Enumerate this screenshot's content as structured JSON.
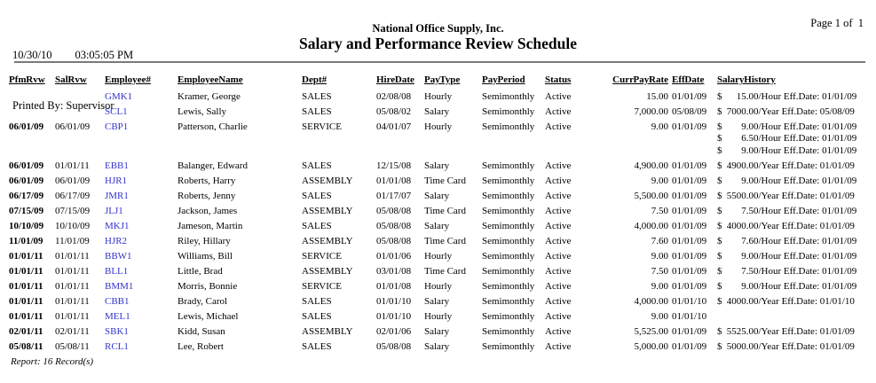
{
  "header": {
    "date": "10/30/10",
    "time": "03:05:05 PM",
    "printed_by_label": "Printed By:",
    "printed_by_value": "Supervisor",
    "company": "National Office Supply, Inc.",
    "title": "Salary and Performance Review Schedule",
    "page_info": "Page 1 of  1"
  },
  "colors": {
    "employee_link": "#3333CC",
    "rule": "#7a7a7a",
    "text": "#000000"
  },
  "table": {
    "headers": {
      "pfm": "Pfm Rvw",
      "sal": "Sal Rvw",
      "emp": "Employee#",
      "name": "Employee Name",
      "dept": "Dept#",
      "hire": "Hire Date",
      "pay_type": "Pay Type",
      "pay_period": "Pay Period",
      "status": "Status",
      "rate": "Curr Pay Rate",
      "eff": "Eff Date",
      "history": "Salary History"
    },
    "rows": [
      {
        "pfm_rvw": "",
        "sal_rvw": "",
        "employee_id": "GMK1",
        "employee_name": "Kramer, George",
        "dept": "SALES",
        "hire_date": "02/08/08",
        "pay_type": "Hourly",
        "pay_period": "Semimonthly",
        "status": "Active",
        "curr_pay_rate": "15.00",
        "eff_date": "01/01/09",
        "salary_history": [
          {
            "amt": "15.00",
            "per": "Hour",
            "date": "01/01/09"
          }
        ]
      },
      {
        "pfm_rvw": "",
        "sal_rvw": "",
        "employee_id": "SCL1",
        "employee_name": "Lewis, Sally",
        "dept": "SALES",
        "hire_date": "05/08/02",
        "pay_type": "Salary",
        "pay_period": "Semimonthly",
        "status": "Active",
        "curr_pay_rate": "7,000.00",
        "eff_date": "05/08/09",
        "salary_history": [
          {
            "amt": "7000.00",
            "per": "Year",
            "date": "05/08/09"
          }
        ]
      },
      {
        "pfm_rvw": "06/01/09",
        "sal_rvw": "06/01/09",
        "employee_id": "CBP1",
        "employee_name": "Patterson, Charlie",
        "dept": "SERVICE",
        "hire_date": "04/01/07",
        "pay_type": "Hourly",
        "pay_period": "Semimonthly",
        "status": "Active",
        "curr_pay_rate": "9.00",
        "eff_date": "01/01/09",
        "salary_history": [
          {
            "amt": "9.00",
            "per": "Hour",
            "date": "01/01/09"
          },
          {
            "amt": "6.50",
            "per": "Hour",
            "date": "01/01/09"
          },
          {
            "amt": "9.00",
            "per": "Hour",
            "date": "01/01/09"
          }
        ]
      },
      {
        "pfm_rvw": "06/01/09",
        "sal_rvw": "01/01/11",
        "employee_id": "EBB1",
        "employee_name": "Balanger, Edward",
        "dept": "SALES",
        "hire_date": "12/15/08",
        "pay_type": "Salary",
        "pay_period": "Semimonthly",
        "status": "Active",
        "curr_pay_rate": "4,900.00",
        "eff_date": "01/01/09",
        "salary_history": [
          {
            "amt": "4900.00",
            "per": "Year",
            "date": "01/01/09"
          }
        ]
      },
      {
        "pfm_rvw": "06/01/09",
        "sal_rvw": "06/01/09",
        "employee_id": "HJR1",
        "employee_name": "Roberts, Harry",
        "dept": "ASSEMBLY",
        "hire_date": "01/01/08",
        "pay_type": "Time Card",
        "pay_period": "Semimonthly",
        "status": "Active",
        "curr_pay_rate": "9.00",
        "eff_date": "01/01/09",
        "salary_history": [
          {
            "amt": "9.00",
            "per": "Hour",
            "date": "01/01/09"
          }
        ]
      },
      {
        "pfm_rvw": "06/17/09",
        "sal_rvw": "06/17/09",
        "employee_id": "JMR1",
        "employee_name": "Roberts, Jenny",
        "dept": "SALES",
        "hire_date": "01/17/07",
        "pay_type": "Salary",
        "pay_period": "Semimonthly",
        "status": "Active",
        "curr_pay_rate": "5,500.00",
        "eff_date": "01/01/09",
        "salary_history": [
          {
            "amt": "5500.00",
            "per": "Year",
            "date": "01/01/09"
          }
        ]
      },
      {
        "pfm_rvw": "07/15/09",
        "sal_rvw": "07/15/09",
        "employee_id": "JLJ1",
        "employee_name": "Jackson, James",
        "dept": "ASSEMBLY",
        "hire_date": "05/08/08",
        "pay_type": "Time Card",
        "pay_period": "Semimonthly",
        "status": "Active",
        "curr_pay_rate": "7.50",
        "eff_date": "01/01/09",
        "salary_history": [
          {
            "amt": "7.50",
            "per": "Hour",
            "date": "01/01/09"
          }
        ]
      },
      {
        "pfm_rvw": "10/10/09",
        "sal_rvw": "10/10/09",
        "employee_id": "MKJ1",
        "employee_name": "Jameson, Martin",
        "dept": "SALES",
        "hire_date": "05/08/08",
        "pay_type": "Salary",
        "pay_period": "Semimonthly",
        "status": "Active",
        "curr_pay_rate": "4,000.00",
        "eff_date": "01/01/09",
        "salary_history": [
          {
            "amt": "4000.00",
            "per": "Year",
            "date": "01/01/09"
          }
        ]
      },
      {
        "pfm_rvw": "11/01/09",
        "sal_rvw": "11/01/09",
        "employee_id": "HJR2",
        "employee_name": "Riley, Hillary",
        "dept": "ASSEMBLY",
        "hire_date": "05/08/08",
        "pay_type": "Time Card",
        "pay_period": "Semimonthly",
        "status": "Active",
        "curr_pay_rate": "7.60",
        "eff_date": "01/01/09",
        "salary_history": [
          {
            "amt": "7.60",
            "per": "Hour",
            "date": "01/01/09"
          }
        ]
      },
      {
        "pfm_rvw": "01/01/11",
        "sal_rvw": "01/01/11",
        "employee_id": "BBW1",
        "employee_name": "Williams, Bill",
        "dept": "SERVICE",
        "hire_date": "01/01/06",
        "pay_type": "Hourly",
        "pay_period": "Semimonthly",
        "status": "Active",
        "curr_pay_rate": "9.00",
        "eff_date": "01/01/09",
        "salary_history": [
          {
            "amt": "9.00",
            "per": "Hour",
            "date": "01/01/09"
          }
        ]
      },
      {
        "pfm_rvw": "01/01/11",
        "sal_rvw": "01/01/11",
        "employee_id": "BLL1",
        "employee_name": "Little, Brad",
        "dept": "ASSEMBLY",
        "hire_date": "03/01/08",
        "pay_type": "Time Card",
        "pay_period": "Semimonthly",
        "status": "Active",
        "curr_pay_rate": "7.50",
        "eff_date": "01/01/09",
        "salary_history": [
          {
            "amt": "7.50",
            "per": "Hour",
            "date": "01/01/09"
          }
        ]
      },
      {
        "pfm_rvw": "01/01/11",
        "sal_rvw": "01/01/11",
        "employee_id": "BMM1",
        "employee_name": "Morris, Bonnie",
        "dept": "SERVICE",
        "hire_date": "01/01/08",
        "pay_type": "Hourly",
        "pay_period": "Semimonthly",
        "status": "Active",
        "curr_pay_rate": "9.00",
        "eff_date": "01/01/09",
        "salary_history": [
          {
            "amt": "9.00",
            "per": "Hour",
            "date": "01/01/09"
          }
        ]
      },
      {
        "pfm_rvw": "01/01/11",
        "sal_rvw": "01/01/11",
        "employee_id": "CBB1",
        "employee_name": "Brady, Carol",
        "dept": "SALES",
        "hire_date": "01/01/10",
        "pay_type": "Salary",
        "pay_period": "Semimonthly",
        "status": "Active",
        "curr_pay_rate": "4,000.00",
        "eff_date": "01/01/10",
        "salary_history": [
          {
            "amt": "4000.00",
            "per": "Year",
            "date": "01/01/10"
          }
        ]
      },
      {
        "pfm_rvw": "01/01/11",
        "sal_rvw": "01/01/11",
        "employee_id": "MEL1",
        "employee_name": "Lewis, Michael",
        "dept": "SALES",
        "hire_date": "01/01/10",
        "pay_type": "Hourly",
        "pay_period": "Semimonthly",
        "status": "Active",
        "curr_pay_rate": "9.00",
        "eff_date": "01/01/10",
        "salary_history": []
      },
      {
        "pfm_rvw": "02/01/11",
        "sal_rvw": "02/01/11",
        "employee_id": "SBK1",
        "employee_name": "Kidd, Susan",
        "dept": "ASSEMBLY",
        "hire_date": "02/01/06",
        "pay_type": "Salary",
        "pay_period": "Semimonthly",
        "status": "Active",
        "curr_pay_rate": "5,525.00",
        "eff_date": "01/01/09",
        "salary_history": [
          {
            "amt": "5525.00",
            "per": "Year",
            "date": "01/01/09"
          }
        ]
      },
      {
        "pfm_rvw": "05/08/11",
        "sal_rvw": "05/08/11",
        "employee_id": "RCL1",
        "employee_name": "Lee, Robert",
        "dept": "SALES",
        "hire_date": "05/08/08",
        "pay_type": "Salary",
        "pay_period": "Semimonthly",
        "status": "Active",
        "curr_pay_rate": "5,000.00",
        "eff_date": "01/01/09",
        "salary_history": [
          {
            "amt": "5000.00",
            "per": "Year",
            "date": "01/01/09"
          }
        ]
      }
    ]
  },
  "footer": {
    "text": "Report: 16 Record(s)"
  }
}
